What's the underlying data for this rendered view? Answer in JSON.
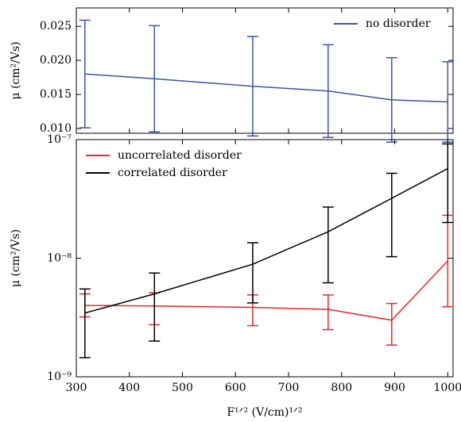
{
  "chart_data": [
    {
      "type": "line",
      "ylabel": "μ (cm²/Vs)",
      "x": [
        316.2,
        447.2,
        632.5,
        774.6,
        894.4,
        1000
      ],
      "xlim": [
        300,
        1010
      ],
      "xticks": [
        300,
        400,
        500,
        600,
        700,
        800,
        900,
        1000
      ],
      "ylim": [
        0.0093,
        0.0277
      ],
      "yticks": [
        0.01,
        0.015,
        0.02,
        0.025
      ],
      "ytick_labels": [
        "0.010",
        "0.015",
        "0.020",
        "0.025"
      ],
      "legend": "upper right",
      "series": [
        {
          "name": "no disorder",
          "color": "#3a55a4",
          "values": [
            0.018,
            0.0173,
            0.0162,
            0.0155,
            0.0142,
            0.0139
          ],
          "errors": [
            0.0079,
            0.0078,
            0.0073,
            0.0068,
            0.0062,
            0.0059
          ]
        }
      ]
    },
    {
      "type": "line",
      "ylabel": "μ (cm²/Vs)",
      "xlabel": "F¹ᐟ² (V/cm)¹ᐟ²",
      "x": [
        316.2,
        447.2,
        632.5,
        774.6,
        894.4,
        1000
      ],
      "xlim": [
        300,
        1010
      ],
      "xticks": [
        300,
        400,
        500,
        600,
        700,
        800,
        900,
        1000
      ],
      "ylim": [
        1e-09,
        1e-07
      ],
      "log_y": true,
      "yticks": [
        {
          "value": 1e-09,
          "label": "10⁻⁹"
        },
        {
          "value": 1e-08,
          "label": "10⁻⁸"
        },
        {
          "value": 1e-07,
          "label": "10⁻⁷"
        }
      ],
      "legend": "upper left",
      "series": [
        {
          "name": "uncorrelated disorder",
          "color": "#e8262a",
          "values": [
            4e-09,
            3.95e-09,
            3.85e-09,
            3.7e-09,
            3e-09,
            9.5e-09
          ],
          "lower": [
            3.2e-09,
            2.75e-09,
            2.7e-09,
            2.5e-09,
            1.85e-09,
            3.9e-09
          ],
          "upper": [
            5e-09,
            5.1e-09,
            4.9e-09,
            4.9e-09,
            4.15e-09,
            2.3e-08
          ]
        },
        {
          "name": "correlated disorder",
          "color": "#000000",
          "values": [
            3.45e-09,
            5e-09,
            8.9e-09,
            1.67e-08,
            3.2e-08,
            5.7e-08
          ],
          "lower": [
            1.45e-09,
            2e-09,
            4.2e-09,
            6.2e-09,
            1.03e-08,
            2e-08
          ],
          "upper": [
            5.5e-09,
            7.5e-09,
            1.35e-08,
            2.7e-08,
            5.2e-08,
            9.2e-08
          ]
        }
      ]
    }
  ]
}
